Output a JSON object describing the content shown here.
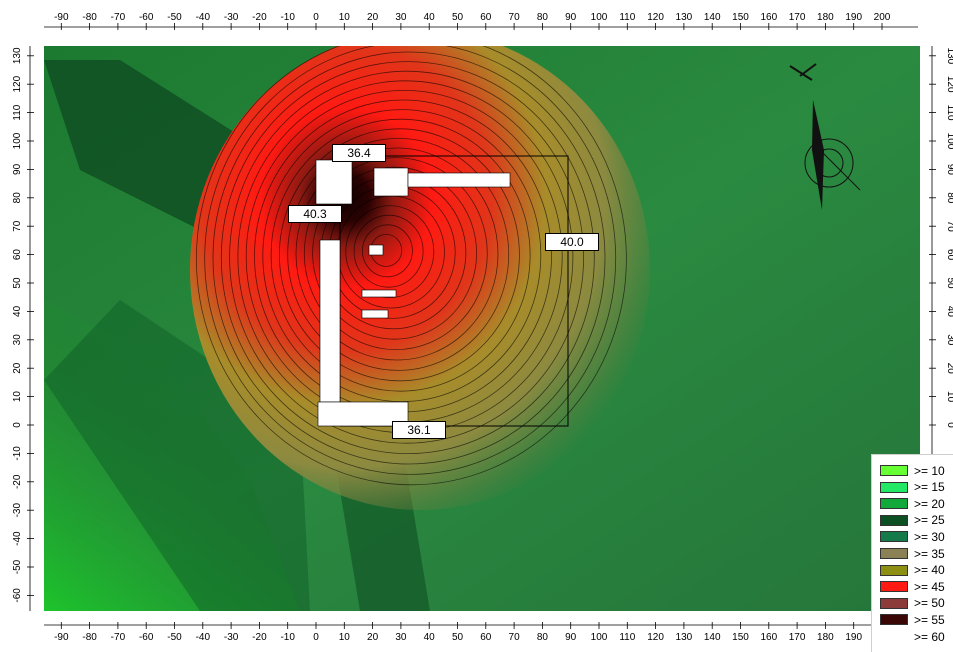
{
  "axes": {
    "x_top": [
      "-90",
      "-80",
      "-70",
      "-60",
      "-50",
      "-40",
      "-30",
      "-20",
      "-10",
      "0",
      "10",
      "20",
      "30",
      "40",
      "50",
      "60",
      "70",
      "80",
      "90",
      "100",
      "110",
      "120",
      "130",
      "140",
      "150",
      "160",
      "170",
      "180",
      "190",
      "200"
    ],
    "x_bottom": [
      "-90",
      "-80",
      "-70",
      "-60",
      "-50",
      "-40",
      "-30",
      "-20",
      "-10",
      "0",
      "10",
      "20",
      "30",
      "40",
      "50",
      "60",
      "70",
      "80",
      "90",
      "100",
      "110",
      "120",
      "130",
      "140",
      "150",
      "160",
      "170",
      "180",
      "190"
    ],
    "y_left": [
      "130",
      "120",
      "110",
      "100",
      "90",
      "80",
      "70",
      "60",
      "50",
      "40",
      "30",
      "20",
      "10",
      "0",
      "-10",
      "-20",
      "-30",
      "-40",
      "-50",
      "-60"
    ],
    "y_right": [
      "130",
      "120",
      "110",
      "100",
      "90",
      "80",
      "70",
      "60",
      "50",
      "40",
      "30",
      "20",
      "10",
      "0"
    ]
  },
  "labels": {
    "north": "36.4",
    "west": "40.3",
    "east": "40.0",
    "south": "36.1"
  },
  "legend": {
    "items": [
      {
        "label": ">= 10",
        "color": "#66ff33"
      },
      {
        "label": ">= 15",
        "color": "#22e866"
      },
      {
        "label": ">= 20",
        "color": "#12a83a"
      },
      {
        "label": ">= 25",
        "color": "#0c4f22"
      },
      {
        "label": ">= 30",
        "color": "#157a4a"
      },
      {
        "label": ">= 35",
        "color": "#8a8255"
      },
      {
        "label": ">= 40",
        "color": "#8c8f12"
      },
      {
        "label": ">= 45",
        "color": "#ff1a12"
      },
      {
        "label": ">= 50",
        "color": "#8c3a3a"
      },
      {
        "label": ">= 55",
        "color": "#3a0606"
      },
      {
        "label": ">= 60",
        "color": ""
      }
    ]
  },
  "colors": {
    "field_dark": "#0c4f22",
    "field_mid": "#2a8a3a",
    "field_light": "#22c42e",
    "hot_red": "#ff1a12",
    "hot_olive": "#9a8a2a",
    "core": "#1a0000"
  }
}
